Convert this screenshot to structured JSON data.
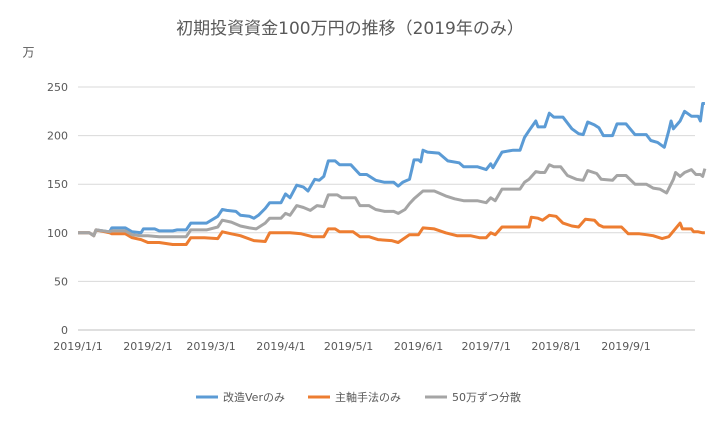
{
  "chart_data": {
    "type": "line",
    "title": "初期投資資金100万円の推移（2019年のみ）",
    "ylabel": "万",
    "xlabel": "",
    "ylim": [
      0,
      250
    ],
    "yticks": [
      0,
      50,
      100,
      150,
      200,
      250
    ],
    "xlim": [
      "2019-01-01",
      "2019-09-30"
    ],
    "xticks": [
      {
        "date": "2019-01-01",
        "label": "2019/1/1"
      },
      {
        "date": "2019-02-01",
        "label": "2019/2/1"
      },
      {
        "date": "2019-03-01",
        "label": "2019/3/1"
      },
      {
        "date": "2019-04-01",
        "label": "2019/4/1"
      },
      {
        "date": "2019-05-01",
        "label": "2019/5/1"
      },
      {
        "date": "2019-06-01",
        "label": "2019/6/1"
      },
      {
        "date": "2019-07-01",
        "label": "2019/7/1"
      },
      {
        "date": "2019-08-01",
        "label": "2019/8/1"
      },
      {
        "date": "2019-09-01",
        "label": "2019/9/1"
      }
    ],
    "grid": true,
    "legend_position": "bottom",
    "series": [
      {
        "name": "改造Verのみ",
        "color": "#5B9BD5",
        "points": [
          [
            "2019-01-01",
            100
          ],
          [
            "2019-01-06",
            100
          ],
          [
            "2019-01-08",
            97
          ],
          [
            "2019-01-09",
            103
          ],
          [
            "2019-01-15",
            101
          ],
          [
            "2019-01-16",
            105
          ],
          [
            "2019-01-22",
            105
          ],
          [
            "2019-01-25",
            101
          ],
          [
            "2019-01-29",
            100
          ],
          [
            "2019-01-30",
            104
          ],
          [
            "2019-02-04",
            104
          ],
          [
            "2019-02-06",
            102
          ],
          [
            "2019-02-12",
            102
          ],
          [
            "2019-02-14",
            103
          ],
          [
            "2019-02-18",
            103
          ],
          [
            "2019-02-20",
            110
          ],
          [
            "2019-02-27",
            110
          ],
          [
            "2019-03-04",
            117
          ],
          [
            "2019-03-06",
            124
          ],
          [
            "2019-03-08",
            123
          ],
          [
            "2019-03-12",
            122
          ],
          [
            "2019-03-14",
            118
          ],
          [
            "2019-03-18",
            117
          ],
          [
            "2019-03-20",
            115
          ],
          [
            "2019-03-22",
            118
          ],
          [
            "2019-03-25",
            125
          ],
          [
            "2019-03-27",
            131
          ],
          [
            "2019-04-01",
            131
          ],
          [
            "2019-04-03",
            140
          ],
          [
            "2019-04-05",
            136
          ],
          [
            "2019-04-08",
            149
          ],
          [
            "2019-04-11",
            147
          ],
          [
            "2019-04-13",
            143
          ],
          [
            "2019-04-16",
            155
          ],
          [
            "2019-04-18",
            154
          ],
          [
            "2019-04-20",
            158
          ],
          [
            "2019-04-22",
            174
          ],
          [
            "2019-04-25",
            174
          ],
          [
            "2019-04-27",
            170
          ],
          [
            "2019-05-02",
            170
          ],
          [
            "2019-05-06",
            160
          ],
          [
            "2019-05-09",
            160
          ],
          [
            "2019-05-13",
            154
          ],
          [
            "2019-05-17",
            152
          ],
          [
            "2019-05-21",
            152
          ],
          [
            "2019-05-23",
            148
          ],
          [
            "2019-05-25",
            152
          ],
          [
            "2019-05-28",
            155
          ],
          [
            "2019-05-29",
            165
          ],
          [
            "2019-05-30",
            175
          ],
          [
            "2019-06-01",
            175
          ],
          [
            "2019-06-02",
            173
          ],
          [
            "2019-06-03",
            185
          ],
          [
            "2019-06-05",
            183
          ],
          [
            "2019-06-10",
            182
          ],
          [
            "2019-06-14",
            174
          ],
          [
            "2019-06-19",
            172
          ],
          [
            "2019-06-21",
            168
          ],
          [
            "2019-06-27",
            168
          ],
          [
            "2019-07-01",
            165
          ],
          [
            "2019-07-03",
            171
          ],
          [
            "2019-07-04",
            167
          ],
          [
            "2019-07-08",
            183
          ],
          [
            "2019-07-13",
            185
          ],
          [
            "2019-07-16",
            185
          ],
          [
            "2019-07-18",
            198
          ],
          [
            "2019-07-20",
            205
          ],
          [
            "2019-07-23",
            215
          ],
          [
            "2019-07-24",
            209
          ],
          [
            "2019-07-27",
            209
          ],
          [
            "2019-07-29",
            223
          ],
          [
            "2019-07-31",
            219
          ],
          [
            "2019-08-04",
            219
          ],
          [
            "2019-08-08",
            207
          ],
          [
            "2019-08-11",
            202
          ],
          [
            "2019-08-13",
            201
          ],
          [
            "2019-08-15",
            214
          ],
          [
            "2019-08-18",
            211
          ],
          [
            "2019-08-20",
            208
          ],
          [
            "2019-08-22",
            200
          ],
          [
            "2019-08-26",
            200
          ],
          [
            "2019-08-28",
            212
          ],
          [
            "2019-09-01",
            212
          ],
          [
            "2019-09-05",
            201
          ],
          [
            "2019-09-10",
            201
          ],
          [
            "2019-09-12",
            195
          ],
          [
            "2019-09-15",
            193
          ],
          [
            "2019-09-18",
            188
          ],
          [
            "2019-09-20",
            205
          ],
          [
            "2019-09-21",
            215
          ],
          [
            "2019-09-22",
            207
          ],
          [
            "2019-09-25",
            215
          ],
          [
            "2019-09-27",
            225
          ],
          [
            "2019-09-30",
            220
          ],
          [
            "2019-10-03",
            220
          ],
          [
            "2019-10-04",
            215
          ],
          [
            "2019-10-05",
            233
          ],
          [
            "2019-10-06",
            233
          ]
        ]
      },
      {
        "name": "主軸手法のみ",
        "color": "#ED7D31",
        "points": [
          [
            "2019-01-01",
            100
          ],
          [
            "2019-01-06",
            100
          ],
          [
            "2019-01-08",
            97
          ],
          [
            "2019-01-09",
            103
          ],
          [
            "2019-01-15",
            100
          ],
          [
            "2019-01-16",
            99
          ],
          [
            "2019-01-22",
            99
          ],
          [
            "2019-01-25",
            95
          ],
          [
            "2019-01-29",
            93
          ],
          [
            "2019-02-01",
            90
          ],
          [
            "2019-02-06",
            90
          ],
          [
            "2019-02-12",
            88
          ],
          [
            "2019-02-18",
            88
          ],
          [
            "2019-02-20",
            95
          ],
          [
            "2019-02-26",
            95
          ],
          [
            "2019-03-04",
            94
          ],
          [
            "2019-03-06",
            101
          ],
          [
            "2019-03-10",
            99
          ],
          [
            "2019-03-14",
            97
          ],
          [
            "2019-03-20",
            92
          ],
          [
            "2019-03-25",
            91
          ],
          [
            "2019-03-27",
            100
          ],
          [
            "2019-04-01",
            100
          ],
          [
            "2019-04-05",
            100
          ],
          [
            "2019-04-10",
            99
          ],
          [
            "2019-04-15",
            96
          ],
          [
            "2019-04-20",
            96
          ],
          [
            "2019-04-22",
            104
          ],
          [
            "2019-04-25",
            104
          ],
          [
            "2019-04-27",
            101
          ],
          [
            "2019-05-03",
            101
          ],
          [
            "2019-05-06",
            96
          ],
          [
            "2019-05-10",
            96
          ],
          [
            "2019-05-14",
            93
          ],
          [
            "2019-05-20",
            92
          ],
          [
            "2019-05-23",
            90
          ],
          [
            "2019-05-28",
            98
          ],
          [
            "2019-06-01",
            98
          ],
          [
            "2019-06-03",
            105
          ],
          [
            "2019-06-08",
            104
          ],
          [
            "2019-06-13",
            100
          ],
          [
            "2019-06-18",
            97
          ],
          [
            "2019-06-24",
            97
          ],
          [
            "2019-06-28",
            95
          ],
          [
            "2019-07-01",
            95
          ],
          [
            "2019-07-03",
            100
          ],
          [
            "2019-07-05",
            98
          ],
          [
            "2019-07-08",
            106
          ],
          [
            "2019-07-13",
            106
          ],
          [
            "2019-07-20",
            106
          ],
          [
            "2019-07-21",
            116
          ],
          [
            "2019-07-24",
            115
          ],
          [
            "2019-07-26",
            113
          ],
          [
            "2019-07-29",
            118
          ],
          [
            "2019-08-01",
            117
          ],
          [
            "2019-08-04",
            110
          ],
          [
            "2019-08-08",
            107
          ],
          [
            "2019-08-11",
            106
          ],
          [
            "2019-08-14",
            114
          ],
          [
            "2019-08-18",
            113
          ],
          [
            "2019-08-20",
            108
          ],
          [
            "2019-08-22",
            106
          ],
          [
            "2019-08-26",
            106
          ],
          [
            "2019-08-30",
            106
          ],
          [
            "2019-09-02",
            99
          ],
          [
            "2019-09-07",
            99
          ],
          [
            "2019-09-10",
            98
          ],
          [
            "2019-09-13",
            97
          ],
          [
            "2019-09-17",
            94
          ],
          [
            "2019-09-20",
            96
          ],
          [
            "2019-09-25",
            110
          ],
          [
            "2019-09-26",
            104
          ],
          [
            "2019-09-30",
            104
          ],
          [
            "2019-10-01",
            101
          ],
          [
            "2019-10-03",
            101
          ],
          [
            "2019-10-05",
            100
          ],
          [
            "2019-10-06",
            100
          ]
        ]
      },
      {
        "name": "50万ずつ分散",
        "color": "#A5A5A5",
        "points": [
          [
            "2019-01-01",
            100
          ],
          [
            "2019-01-06",
            100
          ],
          [
            "2019-01-08",
            97
          ],
          [
            "2019-01-09",
            103
          ],
          [
            "2019-01-15",
            101
          ],
          [
            "2019-01-16",
            102
          ],
          [
            "2019-01-22",
            102
          ],
          [
            "2019-01-25",
            98
          ],
          [
            "2019-01-29",
            97
          ],
          [
            "2019-02-01",
            97
          ],
          [
            "2019-02-06",
            96
          ],
          [
            "2019-02-12",
            96
          ],
          [
            "2019-02-18",
            96
          ],
          [
            "2019-02-20",
            103
          ],
          [
            "2019-02-27",
            103
          ],
          [
            "2019-03-04",
            106
          ],
          [
            "2019-03-06",
            113
          ],
          [
            "2019-03-10",
            111
          ],
          [
            "2019-03-14",
            107
          ],
          [
            "2019-03-18",
            105
          ],
          [
            "2019-03-21",
            104
          ],
          [
            "2019-03-25",
            110
          ],
          [
            "2019-03-27",
            115
          ],
          [
            "2019-04-01",
            115
          ],
          [
            "2019-04-03",
            120
          ],
          [
            "2019-04-05",
            118
          ],
          [
            "2019-04-08",
            128
          ],
          [
            "2019-04-11",
            126
          ],
          [
            "2019-04-14",
            123
          ],
          [
            "2019-04-17",
            128
          ],
          [
            "2019-04-20",
            127
          ],
          [
            "2019-04-22",
            139
          ],
          [
            "2019-04-26",
            139
          ],
          [
            "2019-04-28",
            136
          ],
          [
            "2019-05-04",
            136
          ],
          [
            "2019-05-06",
            128
          ],
          [
            "2019-05-10",
            128
          ],
          [
            "2019-05-13",
            124
          ],
          [
            "2019-05-17",
            122
          ],
          [
            "2019-05-21",
            122
          ],
          [
            "2019-05-23",
            120
          ],
          [
            "2019-05-26",
            124
          ],
          [
            "2019-05-28",
            130
          ],
          [
            "2019-05-30",
            135
          ],
          [
            "2019-06-03",
            143
          ],
          [
            "2019-06-08",
            143
          ],
          [
            "2019-06-13",
            138
          ],
          [
            "2019-06-17",
            135
          ],
          [
            "2019-06-21",
            133
          ],
          [
            "2019-06-27",
            133
          ],
          [
            "2019-07-01",
            131
          ],
          [
            "2019-07-03",
            136
          ],
          [
            "2019-07-05",
            133
          ],
          [
            "2019-07-08",
            145
          ],
          [
            "2019-07-13",
            145
          ],
          [
            "2019-07-16",
            145
          ],
          [
            "2019-07-18",
            152
          ],
          [
            "2019-07-20",
            155
          ],
          [
            "2019-07-23",
            163
          ],
          [
            "2019-07-25",
            162
          ],
          [
            "2019-07-27",
            162
          ],
          [
            "2019-07-29",
            170
          ],
          [
            "2019-07-31",
            168
          ],
          [
            "2019-08-03",
            168
          ],
          [
            "2019-08-06",
            159
          ],
          [
            "2019-08-10",
            155
          ],
          [
            "2019-08-13",
            154
          ],
          [
            "2019-08-15",
            164
          ],
          [
            "2019-08-19",
            161
          ],
          [
            "2019-08-21",
            155
          ],
          [
            "2019-08-26",
            154
          ],
          [
            "2019-08-28",
            159
          ],
          [
            "2019-09-01",
            159
          ],
          [
            "2019-09-05",
            150
          ],
          [
            "2019-09-10",
            150
          ],
          [
            "2019-09-13",
            146
          ],
          [
            "2019-09-16",
            145
          ],
          [
            "2019-09-19",
            141
          ],
          [
            "2019-09-22",
            155
          ],
          [
            "2019-09-23",
            162
          ],
          [
            "2019-09-25",
            158
          ],
          [
            "2019-09-27",
            162
          ],
          [
            "2019-09-30",
            165
          ],
          [
            "2019-10-02",
            160
          ],
          [
            "2019-10-04",
            160
          ],
          [
            "2019-10-05",
            158
          ],
          [
            "2019-10-06",
            166
          ]
        ]
      }
    ]
  }
}
